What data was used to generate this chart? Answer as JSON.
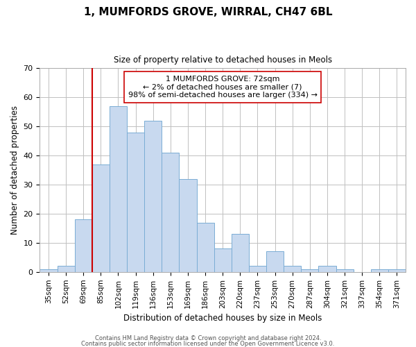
{
  "title": "1, MUMFORDS GROVE, WIRRAL, CH47 6BL",
  "subtitle": "Size of property relative to detached houses in Meols",
  "xlabel": "Distribution of detached houses by size in Meols",
  "ylabel": "Number of detached properties",
  "bar_labels": [
    "35sqm",
    "52sqm",
    "69sqm",
    "85sqm",
    "102sqm",
    "119sqm",
    "136sqm",
    "153sqm",
    "169sqm",
    "186sqm",
    "203sqm",
    "220sqm",
    "237sqm",
    "253sqm",
    "270sqm",
    "287sqm",
    "304sqm",
    "321sqm",
    "337sqm",
    "354sqm",
    "371sqm"
  ],
  "bar_heights": [
    1,
    2,
    18,
    37,
    57,
    48,
    52,
    41,
    32,
    17,
    8,
    13,
    2,
    7,
    2,
    1,
    2,
    1,
    0,
    1,
    1
  ],
  "bar_color": "#c8d9ef",
  "bar_edge_color": "#7aadd4",
  "vline_x_index": 3,
  "vline_color": "#cc0000",
  "annotation_text": "1 MUMFORDS GROVE: 72sqm\n← 2% of detached houses are smaller (7)\n98% of semi-detached houses are larger (334) →",
  "annotation_box_edge": "#cc0000",
  "ylim": [
    0,
    70
  ],
  "yticks": [
    0,
    10,
    20,
    30,
    40,
    50,
    60,
    70
  ],
  "footer1": "Contains HM Land Registry data © Crown copyright and database right 2024.",
  "footer2": "Contains public sector information licensed under the Open Government Licence v3.0.",
  "background_color": "#ffffff",
  "grid_color": "#c0c0c0"
}
